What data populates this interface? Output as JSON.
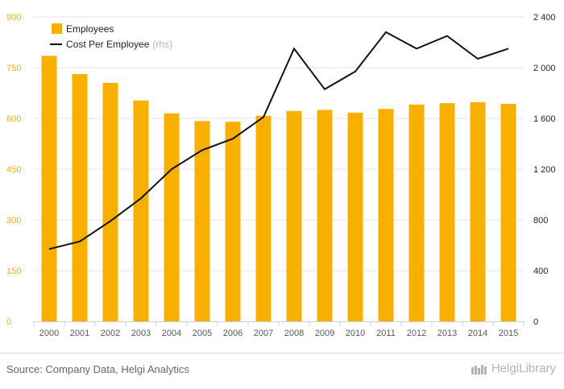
{
  "colors": {
    "bars": "#f7b000",
    "line": "#111111",
    "grid": "#e6e6e6",
    "left_axis_text": "#f4b000"
  },
  "legend": {
    "employees": "Employees",
    "cost": "Cost Per Employee",
    "cost_note": "(rhs)"
  },
  "footer": {
    "source": "Source: Company Data, Helgi Analytics",
    "logo": "HelgiLibrary"
  },
  "chart_data": {
    "type": "bar",
    "categories": [
      "2000",
      "2001",
      "2002",
      "2003",
      "2004",
      "2005",
      "2006",
      "2007",
      "2008",
      "2009",
      "2010",
      "2011",
      "2012",
      "2013",
      "2014",
      "2015"
    ],
    "series": [
      {
        "name": "Employees",
        "type": "bar",
        "axis": "left",
        "values": [
          785,
          731,
          705,
          653,
          615,
          592,
          590,
          608,
          622,
          625,
          617,
          628,
          641,
          645,
          648,
          643
        ]
      },
      {
        "name": "Cost Per Employee",
        "type": "line",
        "axis": "right",
        "values": [
          570,
          630,
          790,
          970,
          1200,
          1350,
          1440,
          1610,
          2150,
          1830,
          1970,
          2280,
          2150,
          2250,
          2070,
          2150
        ]
      }
    ],
    "left_axis": {
      "ticks": [
        "0",
        "150",
        "300",
        "450",
        "600",
        "750",
        "900"
      ],
      "range": [
        0,
        900
      ]
    },
    "right_axis": {
      "ticks": [
        "0",
        "400",
        "800",
        "1 200",
        "1 600",
        "2 000",
        "2 400"
      ],
      "range": [
        0,
        2400
      ]
    },
    "grid": true,
    "legend_position": "top-left"
  }
}
